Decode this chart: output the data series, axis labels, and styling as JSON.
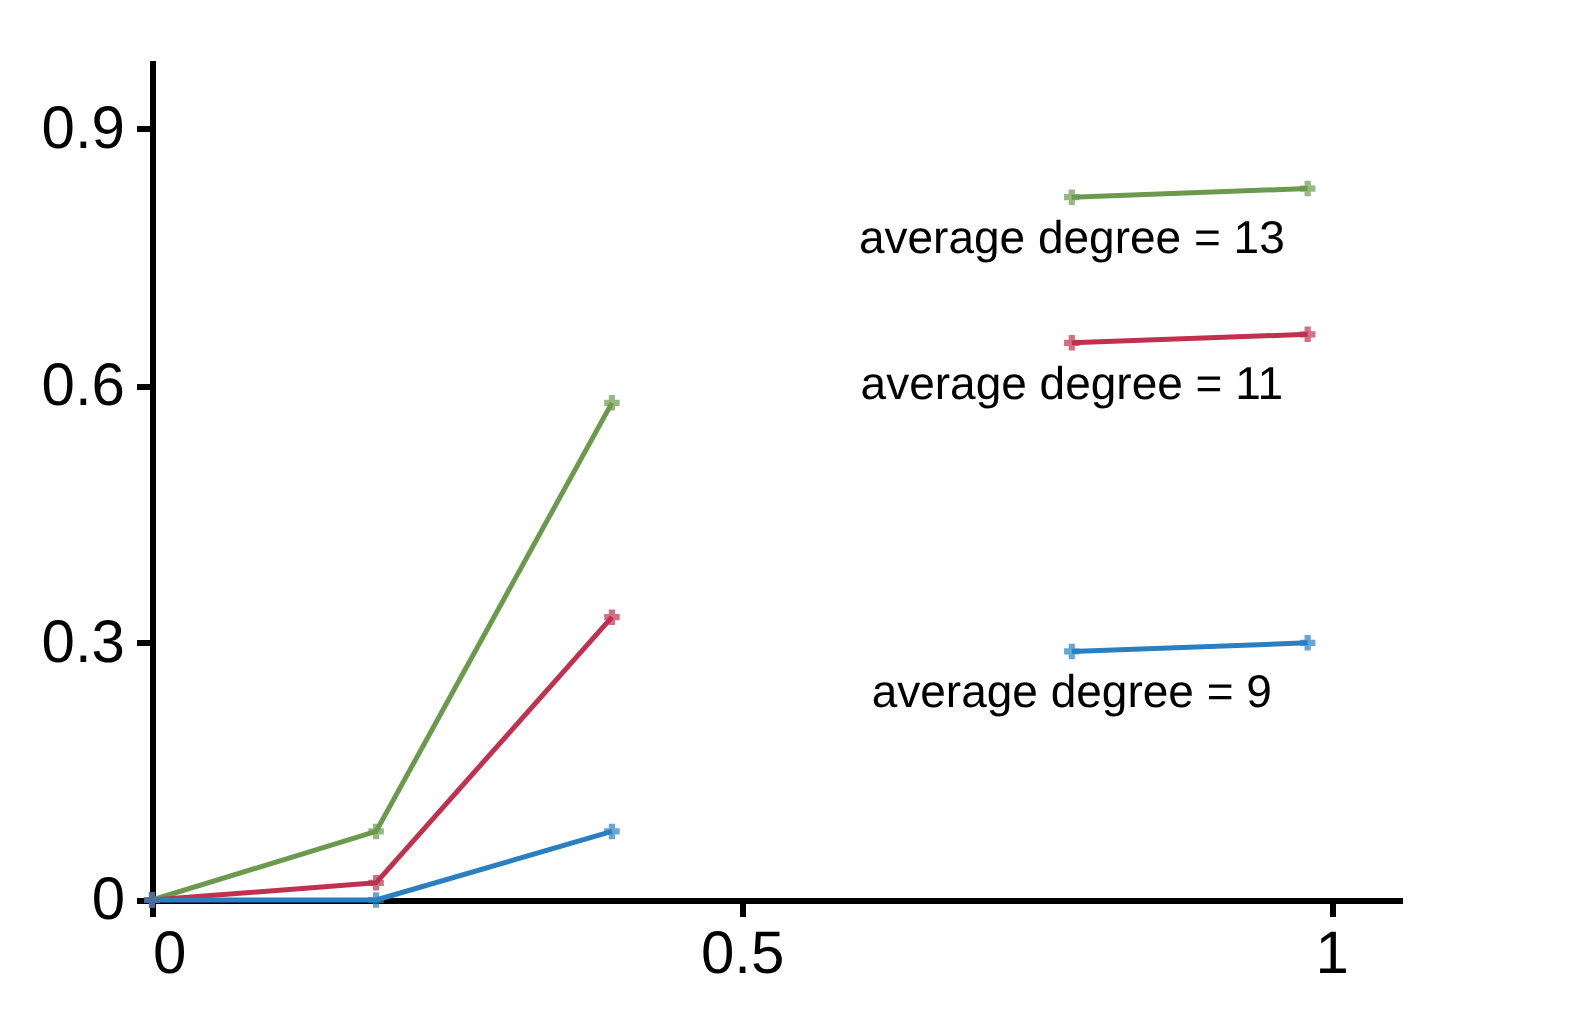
{
  "chart_data": {
    "type": "line",
    "marker": "cross",
    "grid": false,
    "legend": false,
    "x": [
      0,
      0.19,
      0.39,
      0.58,
      0.78,
      0.98
    ],
    "xlim": [
      0,
      1.06
    ],
    "xticks": [
      0,
      0.5,
      1
    ],
    "ylim": [
      0,
      0.98
    ],
    "yticks": [
      0,
      0.3,
      0.6,
      0.9
    ],
    "series": [
      {
        "name": "average degree = 13",
        "color": "#6b9a4f",
        "values": [
          0,
          0.08,
          0.58,
          null,
          0.82,
          0.83
        ]
      },
      {
        "name": "average degree = 11",
        "color": "#c0304f",
        "values": [
          0,
          0.02,
          0.33,
          null,
          0.65,
          0.66
        ]
      },
      {
        "name": "average degree = 9",
        "color": "#2a7fc0",
        "values": [
          0,
          0,
          0.08,
          null,
          0.29,
          0.3
        ]
      }
    ]
  }
}
